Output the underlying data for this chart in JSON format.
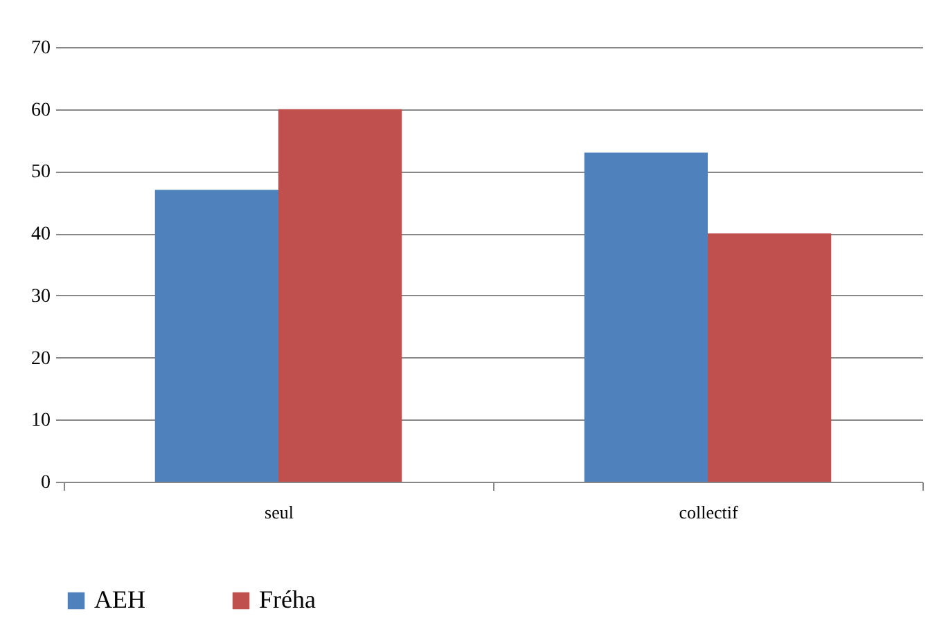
{
  "chart_data": {
    "type": "bar",
    "categories": [
      "seul",
      "collectif"
    ],
    "series": [
      {
        "name": "AEH",
        "color": "#4f81bd",
        "values": [
          47,
          53
        ]
      },
      {
        "name": "Fréha",
        "color": "#c0504d",
        "values": [
          60,
          40
        ]
      }
    ],
    "ylim": [
      0,
      70
    ],
    "yticks": [
      0,
      10,
      20,
      30,
      40,
      50,
      60,
      70
    ],
    "grid": "y",
    "legend": "bottom"
  }
}
